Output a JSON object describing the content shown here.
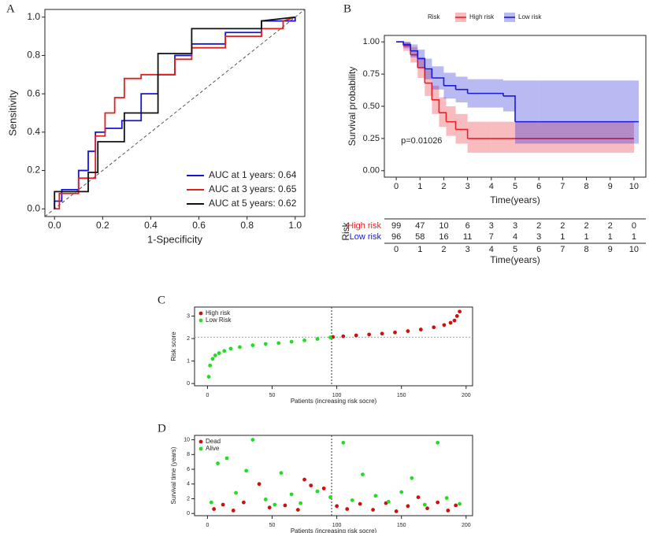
{
  "chart_data": [
    {
      "type": "line",
      "panel": "A",
      "xlabel": "1-Specificity",
      "ylabel": "Sensitivity",
      "xlim": [
        -0.04,
        1.04
      ],
      "ylim": [
        -0.04,
        1.04
      ],
      "xticks": [
        {
          "value": 0,
          "label": "0.0"
        },
        {
          "value": 0.2,
          "label": "0.2"
        },
        {
          "value": 0.4,
          "label": "0.4"
        },
        {
          "value": 0.6,
          "label": "0.6"
        },
        {
          "value": 0.8,
          "label": "0.8"
        },
        {
          "value": 1,
          "label": "1.0"
        }
      ],
      "yticks": [
        {
          "value": 0,
          "label": "0.0"
        },
        {
          "value": 0.2,
          "label": "0.2"
        },
        {
          "value": 0.4,
          "label": "0.4"
        },
        {
          "value": 0.6,
          "label": "0.6"
        },
        {
          "value": 0.8,
          "label": "0.8"
        },
        {
          "value": 1,
          "label": "1.0"
        }
      ],
      "diagonal": true,
      "legend": "bottom-right",
      "series": [
        {
          "name": "AUC at 1 years: 0.64",
          "color": "#1515d8",
          "x": [
            0,
            0,
            0.03,
            0.03,
            0.1,
            0.1,
            0.14,
            0.14,
            0.17,
            0.17,
            0.21,
            0.21,
            0.28,
            0.28,
            0.36,
            0.36,
            0.43,
            0.43,
            0.5,
            0.5,
            0.57,
            0.57,
            0.71,
            0.71,
            0.86,
            0.86,
            1,
            1
          ],
          "values": [
            0,
            0.04,
            0.04,
            0.1,
            0.1,
            0.2,
            0.2,
            0.3,
            0.3,
            0.4,
            0.4,
            0.42,
            0.42,
            0.46,
            0.46,
            0.6,
            0.6,
            0.7,
            0.7,
            0.8,
            0.8,
            0.86,
            0.86,
            0.92,
            0.92,
            0.98,
            0.98,
            1
          ]
        },
        {
          "name": "AUC at 3 years: 0.65",
          "color": "#e01f1f",
          "x": [
            0,
            0.02,
            0.02,
            0.1,
            0.1,
            0.17,
            0.17,
            0.21,
            0.21,
            0.25,
            0.25,
            0.29,
            0.29,
            0.36,
            0.36,
            0.5,
            0.5,
            0.57,
            0.57,
            0.71,
            0.71,
            0.86,
            0.86,
            0.95,
            0.95,
            1
          ],
          "values": [
            0,
            0,
            0.08,
            0.08,
            0.16,
            0.16,
            0.38,
            0.38,
            0.5,
            0.5,
            0.58,
            0.58,
            0.68,
            0.68,
            0.7,
            0.7,
            0.78,
            0.78,
            0.84,
            0.84,
            0.9,
            0.9,
            0.94,
            0.94,
            0.98,
            1
          ]
        },
        {
          "name": "AUC at 5 years: 0.62",
          "color": "#111111",
          "x": [
            0,
            0,
            0.14,
            0.14,
            0.18,
            0.18,
            0.29,
            0.29,
            0.43,
            0.43,
            0.57,
            0.57,
            0.86,
            0.86,
            1
          ],
          "values": [
            0,
            0.09,
            0.09,
            0.19,
            0.19,
            0.35,
            0.35,
            0.5,
            0.5,
            0.81,
            0.81,
            0.94,
            0.94,
            0.98,
            1
          ]
        }
      ]
    },
    {
      "type": "step",
      "panel": "B",
      "xlabel": "Time(years)",
      "ylabel": "Survival probability",
      "annotation": "p=0.01026",
      "legend_title": "Risk",
      "legend": "top",
      "xlim": [
        -0.5,
        10.5
      ],
      "ylim": [
        -0.05,
        1.05
      ],
      "xticks": [
        0,
        1,
        2,
        3,
        4,
        5,
        6,
        7,
        8,
        9,
        10
      ],
      "yticks": [
        {
          "value": 0,
          "label": "0.00"
        },
        {
          "value": 0.25,
          "label": "0.25"
        },
        {
          "value": 0.5,
          "label": "0.50"
        },
        {
          "value": 0.75,
          "label": "0.75"
        },
        {
          "value": 1,
          "label": "1.00"
        }
      ],
      "series": [
        {
          "name": "High risk",
          "color": "#e8202a",
          "x": [
            0,
            0.3,
            0.6,
            0.9,
            1.2,
            1.5,
            1.8,
            2.1,
            2.5,
            3,
            4,
            5,
            10
          ],
          "values": [
            1,
            0.97,
            0.9,
            0.8,
            0.68,
            0.55,
            0.45,
            0.38,
            0.32,
            0.25,
            0.25,
            0.25,
            0.25
          ],
          "lower": [
            1,
            0.93,
            0.84,
            0.72,
            0.58,
            0.44,
            0.34,
            0.27,
            0.21,
            0.14,
            0.14,
            0.14,
            0.14
          ],
          "upper": [
            1,
            1,
            0.96,
            0.88,
            0.78,
            0.66,
            0.57,
            0.5,
            0.44,
            0.38,
            0.38,
            0.38,
            0.38
          ]
        },
        {
          "name": "Low risk",
          "color": "#1a1ad8",
          "x": [
            0,
            0.3,
            0.6,
            0.9,
            1.2,
            1.5,
            2,
            2.5,
            3,
            4.5,
            5,
            6,
            10.2
          ],
          "values": [
            1,
            0.98,
            0.93,
            0.87,
            0.79,
            0.72,
            0.66,
            0.63,
            0.6,
            0.58,
            0.38,
            0.38,
            0.38
          ],
          "lower": [
            1,
            0.95,
            0.88,
            0.8,
            0.71,
            0.63,
            0.56,
            0.53,
            0.49,
            0.46,
            0.21,
            0.21,
            0.21
          ],
          "upper": [
            1,
            1,
            0.98,
            0.94,
            0.87,
            0.81,
            0.76,
            0.73,
            0.71,
            0.7,
            0.7,
            0.7,
            0.7
          ]
        }
      ],
      "risk_table": {
        "title": "Risk",
        "rows": [
          {
            "name": "High risk",
            "color": "#e8202a",
            "values": [
              99,
              47,
              10,
              6,
              3,
              3,
              2,
              2,
              2,
              2,
              0
            ]
          },
          {
            "name": "Low risk",
            "color": "#1a1ad8",
            "values": [
              96,
              58,
              16,
              11,
              7,
              4,
              3,
              1,
              1,
              1,
              1
            ]
          }
        ]
      }
    },
    {
      "type": "scatter",
      "panel": "C",
      "xlabel": "Patients (increasing risk socre)",
      "ylabel": "Risk score",
      "xlim": [
        -10,
        205
      ],
      "ylim": [
        -0.1,
        3.4
      ],
      "xticks": [
        0,
        50,
        100,
        150,
        200
      ],
      "yticks": [
        0,
        1,
        2,
        3
      ],
      "cutoff": {
        "x": 96,
        "y": 2.06
      },
      "legend": "top-left",
      "series": [
        {
          "name": "High risk",
          "color": "#cc1111",
          "x": [
            97,
            105,
            115,
            125,
            135,
            145,
            155,
            165,
            175,
            183,
            188,
            191,
            193,
            195
          ],
          "values": [
            2.07,
            2.1,
            2.14,
            2.18,
            2.22,
            2.27,
            2.33,
            2.4,
            2.5,
            2.6,
            2.7,
            2.8,
            3.0,
            3.2
          ]
        },
        {
          "name": "Low Risk",
          "color": "#22dd22",
          "x": [
            1,
            2,
            4,
            6,
            9,
            13,
            18,
            25,
            35,
            45,
            55,
            65,
            75,
            85,
            95
          ],
          "values": [
            0.3,
            0.8,
            1.1,
            1.25,
            1.35,
            1.45,
            1.55,
            1.62,
            1.7,
            1.76,
            1.8,
            1.86,
            1.92,
            1.98,
            2.05
          ]
        }
      ]
    },
    {
      "type": "scatter",
      "panel": "D",
      "xlabel": "Patients (increasing risk socre)",
      "ylabel": "Survival time (years)",
      "xlim": [
        -10,
        205
      ],
      "ylim": [
        -0.3,
        10.6
      ],
      "xticks": [
        0,
        50,
        100,
        150,
        200
      ],
      "yticks": [
        0,
        2,
        4,
        6,
        8,
        10
      ],
      "cutoff": {
        "x": 96
      },
      "legend": "top-left",
      "series": [
        {
          "name": "Dead",
          "color": "#cc1111",
          "x": [
            5,
            12,
            20,
            28,
            40,
            48,
            60,
            70,
            75,
            80,
            90,
            100,
            108,
            118,
            128,
            138,
            146,
            155,
            163,
            170,
            178,
            186,
            192
          ],
          "values": [
            0.6,
            1.2,
            0.4,
            1.5,
            4.0,
            0.8,
            1.1,
            0.5,
            4.6,
            3.8,
            3.4,
            1.0,
            0.6,
            1.3,
            0.5,
            1.4,
            0.3,
            1.0,
            2.2,
            0.7,
            1.5,
            0.4,
            1.1
          ]
        },
        {
          "name": "Alive",
          "color": "#22dd22",
          "x": [
            3,
            8,
            15,
            22,
            30,
            35,
            45,
            52,
            57,
            65,
            72,
            85,
            95,
            105,
            112,
            120,
            130,
            140,
            150,
            158,
            168,
            178,
            185,
            195
          ],
          "values": [
            1.5,
            6.8,
            7.5,
            2.8,
            5.8,
            10.0,
            1.9,
            1.2,
            5.5,
            2.6,
            1.4,
            3.0,
            2.2,
            9.6,
            1.8,
            5.3,
            2.4,
            1.6,
            2.9,
            4.8,
            1.2,
            9.6,
            2.1,
            1.3
          ]
        }
      ]
    }
  ]
}
